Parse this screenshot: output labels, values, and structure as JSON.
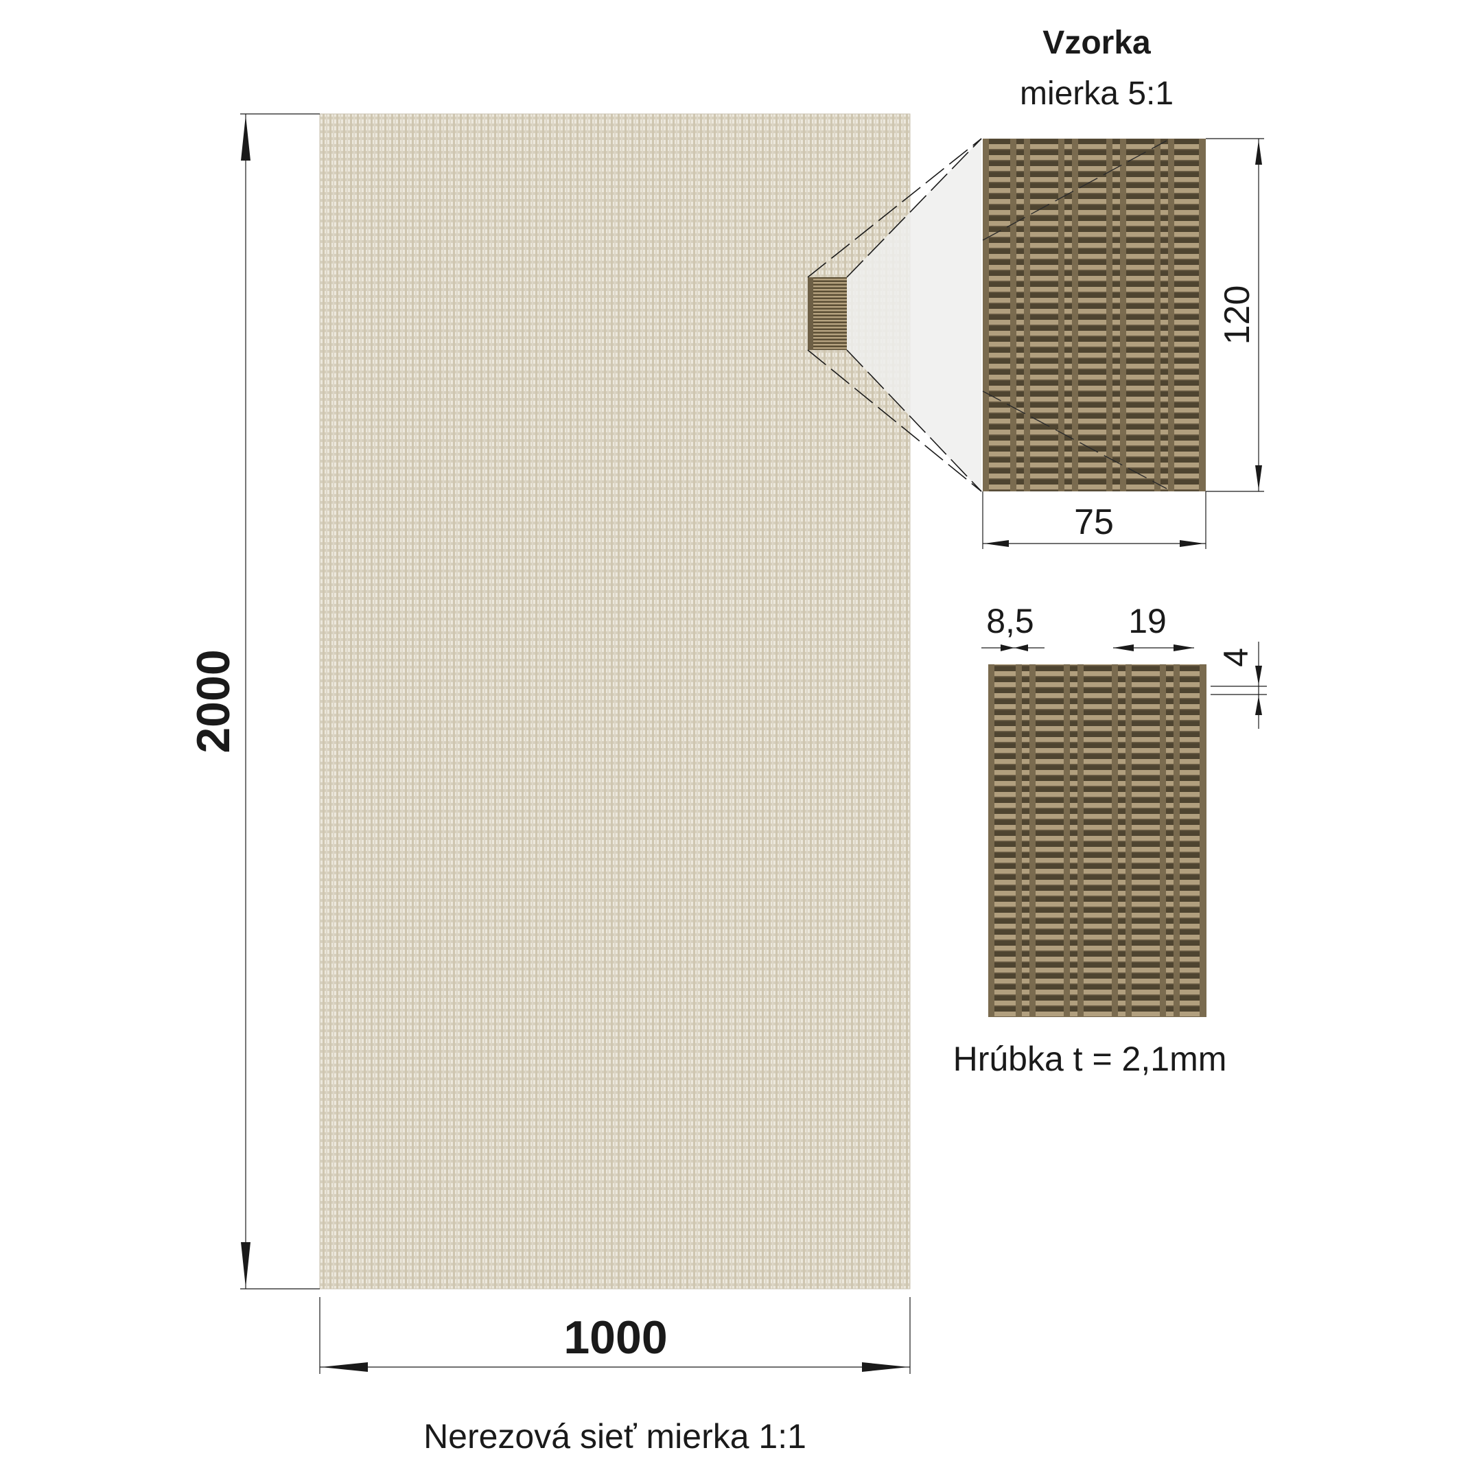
{
  "sample": {
    "title": "Vzorka",
    "scale": "mierka 5:1",
    "height_dim": "120",
    "width_dim": "75"
  },
  "detail": {
    "dim_a": "8,5",
    "dim_b": "19",
    "dim_c": "4",
    "thickness": "Hrúbka t = 2,1mm"
  },
  "panel": {
    "height_dim": "2000",
    "width_dim": "1000",
    "caption": "Nerezová sieť mierka 1:1"
  },
  "colors": {
    "mesh_light": "#dfd9cb",
    "mesh_bar": "#a09070",
    "mesh_dark": "#5e5038",
    "line": "#1a1a1a"
  }
}
